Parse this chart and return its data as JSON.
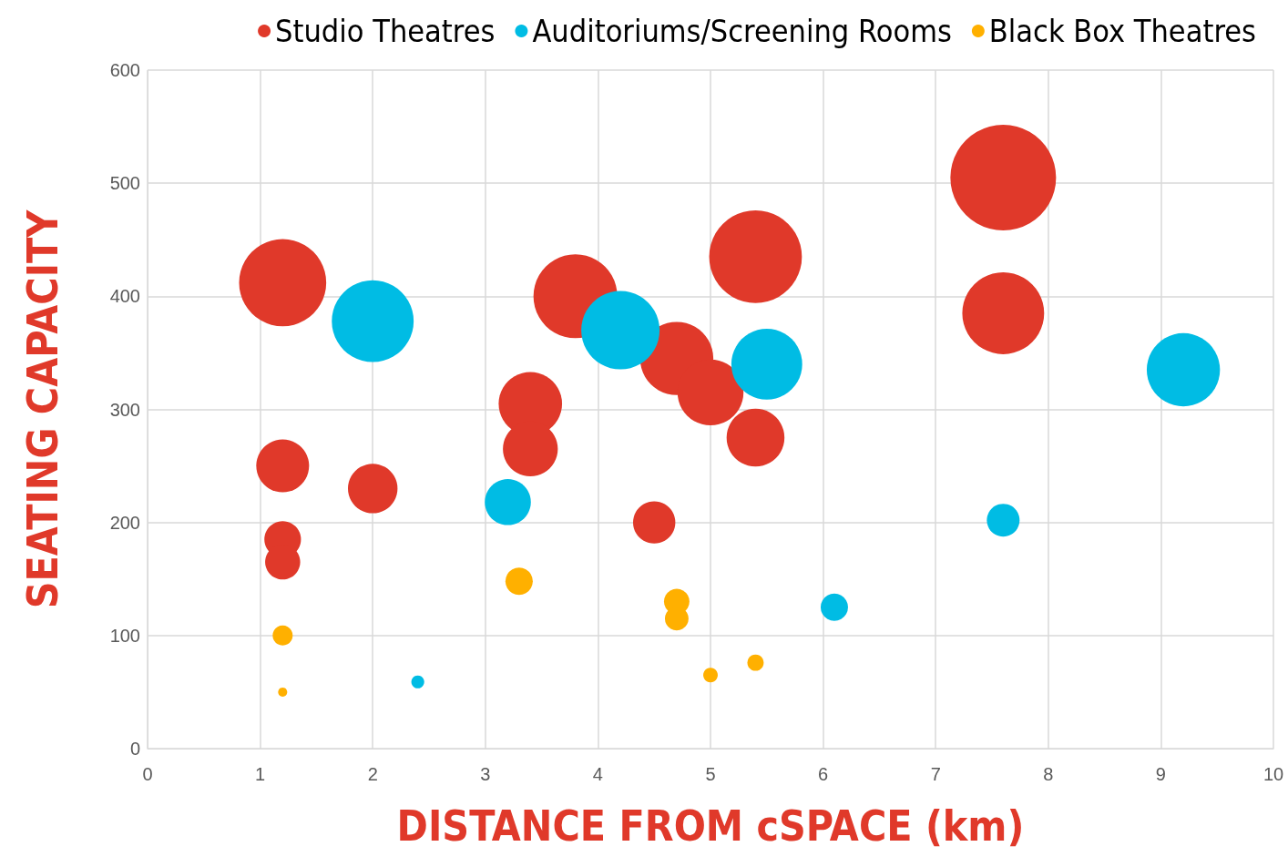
{
  "chart_data": {
    "type": "bubble",
    "xlabel": "DISTANCE FROM cSPACE (km)",
    "ylabel": "SEATING CAPACITY",
    "xlim": [
      0,
      10
    ],
    "xticks": [
      0,
      1,
      2,
      3,
      4,
      5,
      6,
      7,
      8,
      9,
      10
    ],
    "ylim": [
      0,
      600
    ],
    "yticks": [
      0,
      100,
      200,
      300,
      400,
      500,
      600
    ],
    "grid": true,
    "legend": "top right",
    "series": [
      {
        "name": "Studio Theatres",
        "color": "#e0392a",
        "x": [
          1.2,
          1.2,
          1.2,
          1.2,
          2.0,
          3.4,
          3.4,
          3.8,
          4.5,
          4.7,
          5.0,
          5.4,
          5.4,
          7.6,
          7.6
        ],
        "values": [
          412,
          250,
          185,
          165,
          230,
          305,
          265,
          400,
          200,
          345,
          315,
          435,
          275,
          505,
          385
        ],
        "sizes": [
          0.68,
          0.25,
          0.12,
          0.11,
          0.22,
          0.36,
          0.27,
          0.63,
          0.16,
          0.48,
          0.39,
          0.77,
          0.3,
          1,
          0.6
        ]
      },
      {
        "name": "Auditoriums/Screening Rooms",
        "color": "#00bce4",
        "x": [
          2.0,
          2.4,
          3.2,
          4.2,
          5.5,
          6.1,
          7.6,
          9.2
        ],
        "values": [
          378,
          59,
          218,
          370,
          340,
          125,
          202,
          335
        ],
        "sizes": [
          0.6,
          0.015,
          0.19,
          0.55,
          0.45,
          0.067,
          0.096,
          0.48
        ]
      },
      {
        "name": "Black Box Theatres",
        "color": "#ffb000",
        "x": [
          1.2,
          1.2,
          3.3,
          4.7,
          4.7,
          5.0,
          5.4
        ],
        "values": [
          100,
          50,
          148,
          130,
          115,
          65,
          76
        ],
        "sizes": [
          0.036,
          0.0074,
          0.067,
          0.058,
          0.05,
          0.019,
          0.024
        ]
      }
    ]
  }
}
